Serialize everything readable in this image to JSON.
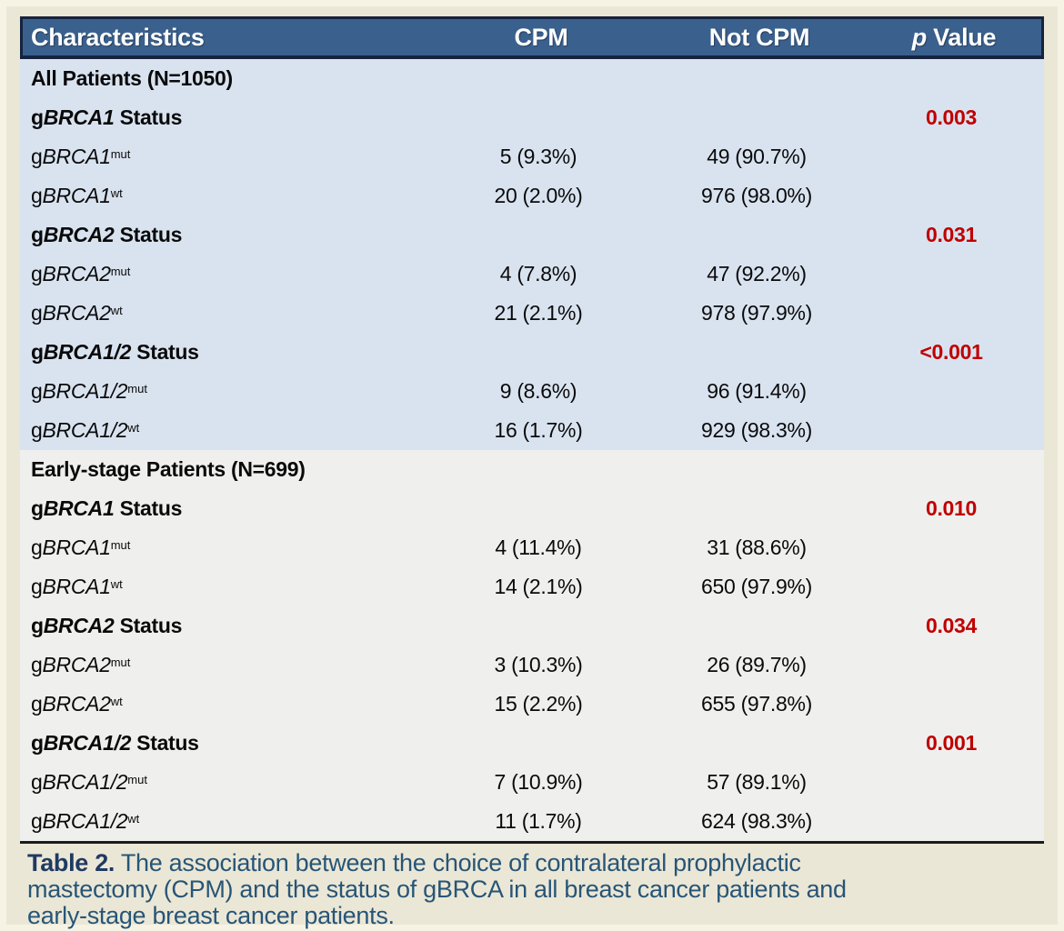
{
  "colors": {
    "page_background": "#ebe7d6",
    "header_background": "#3a608e",
    "header_border": "#16233e",
    "header_text": "#ffffff",
    "all_patients_section_background": "#d9e3f0",
    "early_stage_section_background": "#eff0ee",
    "p_value_red": "#c00000",
    "body_text": "#0a0a0a",
    "caption_label": "#1f3a63",
    "caption_text": "#275577",
    "divider": "#1c1c1c"
  },
  "header": {
    "characteristics": "Characteristics",
    "cpm": "CPM",
    "not_cpm": "Not CPM",
    "p_value_italic": "p",
    "p_value_rest": " Value"
  },
  "sections": [
    {
      "name": "all-patients",
      "bg_class": "sec1",
      "rows": [
        {
          "type": "title",
          "text": "All Patients (N=1050)"
        },
        {
          "type": "group",
          "prefix": "g",
          "gene": "BRCA1",
          "suffix": " Status",
          "p": "0.003"
        },
        {
          "type": "data",
          "prefix": "g",
          "gene": "BRCA1",
          "sup": "mut",
          "cpm": "5 (9.3%)",
          "not_cpm": "49 (90.7%)"
        },
        {
          "type": "data",
          "prefix": "g",
          "gene": "BRCA1",
          "sup": "wt",
          "cpm": "20 (2.0%)",
          "not_cpm": "976 (98.0%)"
        },
        {
          "type": "group",
          "prefix": "g",
          "gene": "BRCA2",
          "suffix": " Status",
          "p": "0.031"
        },
        {
          "type": "data",
          "prefix": "g",
          "gene": "BRCA2",
          "sup": "mut",
          "cpm": "4 (7.8%)",
          "not_cpm": "47 (92.2%)"
        },
        {
          "type": "data",
          "prefix": "g",
          "gene": "BRCA2",
          "sup": "wt",
          "cpm": "21 (2.1%)",
          "not_cpm": "978 (97.9%)"
        },
        {
          "type": "group",
          "prefix": "g",
          "gene": "BRCA1/2",
          "suffix": " Status",
          "p": "<0.001"
        },
        {
          "type": "data",
          "prefix": "g",
          "gene": "BRCA1/2",
          "sup": "mut",
          "cpm": "9 (8.6%)",
          "not_cpm": "96 (91.4%)"
        },
        {
          "type": "data",
          "prefix": "g",
          "gene": "BRCA1/2",
          "sup": "wt",
          "cpm": "16 (1.7%)",
          "not_cpm": "929 (98.3%)"
        }
      ]
    },
    {
      "name": "early-stage-patients",
      "bg_class": "sec2",
      "rows": [
        {
          "type": "title",
          "text": "Early-stage Patients (N=699)"
        },
        {
          "type": "group",
          "prefix": "g",
          "gene": "BRCA1",
          "suffix": " Status",
          "p": "0.010"
        },
        {
          "type": "data",
          "prefix": "g",
          "gene": "BRCA1",
          "sup": "mut",
          "cpm": "4 (11.4%)",
          "not_cpm": "31 (88.6%)"
        },
        {
          "type": "data",
          "prefix": "g",
          "gene": "BRCA1",
          "sup": "wt",
          "cpm": "14 (2.1%)",
          "not_cpm": "650 (97.9%)"
        },
        {
          "type": "group",
          "prefix": "g",
          "gene": "BRCA2",
          "suffix": " Status",
          "p": "0.034"
        },
        {
          "type": "data",
          "prefix": "g",
          "gene": "BRCA2",
          "sup": "mut",
          "cpm": "3 (10.3%)",
          "not_cpm": "26 (89.7%)"
        },
        {
          "type": "data",
          "prefix": "g",
          "gene": "BRCA2",
          "sup": "wt",
          "cpm": "15 (2.2%)",
          "not_cpm": "655 (97.8%)"
        },
        {
          "type": "group",
          "prefix": "g",
          "gene": "BRCA1/2",
          "suffix": " Status",
          "p": "0.001"
        },
        {
          "type": "data",
          "prefix": "g",
          "gene": "BRCA1/2",
          "sup": "mut",
          "cpm": "7 (10.9%)",
          "not_cpm": "57 (89.1%)"
        },
        {
          "type": "data",
          "prefix": "g",
          "gene": "BRCA1/2",
          "sup": "wt",
          "cpm": "11 (1.7%)",
          "not_cpm": "624 (98.3%)"
        }
      ]
    }
  ],
  "caption": {
    "label": "Table 2.",
    "lines": [
      "The association between the choice of contralateral prophylactic",
      "mastectomy (CPM) and the status of gBRCA in all breast cancer patients and",
      "early-stage breast cancer patients."
    ]
  }
}
